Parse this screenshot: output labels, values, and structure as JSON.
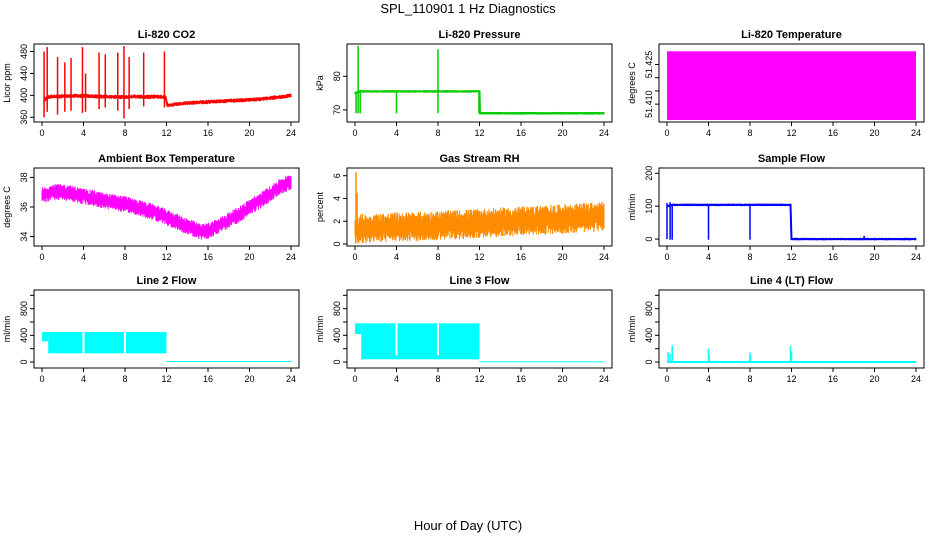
{
  "figure": {
    "title": "SPL_110901  1 Hz Diagnostics",
    "xlabel": "Hour of Day (UTC)"
  },
  "chart_data": [
    {
      "type": "line",
      "title": "Li-820 CO2",
      "ylabel": "Licor ppm",
      "color": "#ff0000",
      "xlim": [
        0,
        24
      ],
      "ylim": [
        355,
        490
      ],
      "xticks": [
        0,
        4,
        8,
        12,
        16,
        20,
        24
      ],
      "yticks": [
        360,
        400,
        440,
        480
      ],
      "base": [
        [
          0.2,
          390
        ],
        [
          0.5,
          397
        ],
        [
          1,
          398
        ],
        [
          2,
          398
        ],
        [
          3,
          399
        ],
        [
          4,
          399
        ],
        [
          5,
          398
        ],
        [
          6,
          398
        ],
        [
          7,
          397
        ],
        [
          8,
          397
        ],
        [
          9,
          398
        ],
        [
          10,
          397
        ],
        [
          11,
          398
        ],
        [
          11.9,
          397
        ],
        [
          12.1,
          381
        ],
        [
          13,
          384
        ],
        [
          14,
          386
        ],
        [
          15,
          387
        ],
        [
          16,
          388
        ],
        [
          17,
          389
        ],
        [
          18,
          390
        ],
        [
          19,
          391
        ],
        [
          20,
          392
        ],
        [
          21,
          393
        ],
        [
          22,
          395
        ],
        [
          23,
          397
        ],
        [
          24,
          400
        ]
      ],
      "band": 4,
      "spikes": [
        [
          0.2,
          360,
          480
        ],
        [
          0.5,
          370,
          488
        ],
        [
          1.5,
          365,
          470
        ],
        [
          2.2,
          370,
          460
        ],
        [
          2.8,
          372,
          468
        ],
        [
          3.9,
          368,
          488
        ],
        [
          4.2,
          370,
          440
        ],
        [
          5.5,
          375,
          478
        ],
        [
          6.1,
          378,
          475
        ],
        [
          7.3,
          372,
          478
        ],
        [
          7.9,
          358,
          490
        ],
        [
          8.4,
          375,
          470
        ],
        [
          9.8,
          380,
          478
        ],
        [
          11.8,
          378,
          480
        ]
      ]
    },
    {
      "type": "line",
      "title": "Li-820 Pressure",
      "ylabel": "kPa",
      "color": "#00cc00",
      "xlim": [
        0,
        24
      ],
      "ylim": [
        67,
        89
      ],
      "xticks": [
        0,
        4,
        8,
        12,
        16,
        20,
        24
      ],
      "yticks": [
        70,
        80
      ],
      "base": [
        [
          0,
          75
        ],
        [
          0.5,
          75.5
        ],
        [
          12,
          75.5
        ],
        [
          12.05,
          69
        ],
        [
          24,
          69
        ]
      ],
      "band": 0.4,
      "spikes": [
        [
          0.1,
          69,
          75
        ],
        [
          0.3,
          69,
          89
        ],
        [
          0.5,
          69,
          76
        ],
        [
          4,
          69,
          75.5
        ],
        [
          8,
          69,
          88
        ],
        [
          11.95,
          69,
          75.5
        ]
      ]
    },
    {
      "type": "area",
      "title": "Li-820 Temperature",
      "ylabel": "degrees C",
      "color": "#ff00ff",
      "xlim": [
        0,
        24
      ],
      "ylim": [
        51.404,
        51.432
      ],
      "xticks": [
        0,
        4,
        8,
        12,
        16,
        20,
        24
      ],
      "yticks": [
        51.41,
        51.415,
        51.42,
        51.425
      ],
      "ytick_labels": [
        "51.410",
        "",
        "",
        "51.425"
      ],
      "fill_range": [
        51.404,
        51.43
      ]
    },
    {
      "type": "line",
      "title": "Ambient Box Temperature",
      "ylabel": "degrees C",
      "color": "#ff00ff",
      "xlim": [
        0,
        24
      ],
      "ylim": [
        33.5,
        38.5
      ],
      "xticks": [
        0,
        4,
        8,
        12,
        16,
        20,
        24
      ],
      "yticks": [
        34,
        36,
        38
      ],
      "base": [
        [
          0,
          36.8
        ],
        [
          1,
          37
        ],
        [
          2,
          37
        ],
        [
          3,
          36.9
        ],
        [
          4,
          36.7
        ],
        [
          5,
          36.6
        ],
        [
          6,
          36.4
        ],
        [
          7,
          36.3
        ],
        [
          8,
          36.2
        ],
        [
          9,
          36
        ],
        [
          10,
          35.8
        ],
        [
          11,
          35.6
        ],
        [
          12,
          35.3
        ],
        [
          13,
          35
        ],
        [
          14,
          34.7
        ],
        [
          15,
          34.4
        ],
        [
          15.5,
          34.3
        ],
        [
          16,
          34.4
        ],
        [
          17,
          34.7
        ],
        [
          18,
          35.1
        ],
        [
          19,
          35.5
        ],
        [
          20,
          36
        ],
        [
          21,
          36.4
        ],
        [
          22,
          36.9
        ],
        [
          23,
          37.4
        ],
        [
          24,
          37.7
        ]
      ],
      "band": 0.55,
      "spikes": []
    },
    {
      "type": "line",
      "title": "Gas Stream RH",
      "ylabel": "percent",
      "color": "#ff8c00",
      "xlim": [
        0,
        24
      ],
      "ylim": [
        0,
        6.5
      ],
      "xticks": [
        0,
        4,
        8,
        12,
        16,
        20,
        24
      ],
      "yticks": [
        0,
        2,
        4,
        6
      ],
      "base": [
        [
          0,
          1.3
        ],
        [
          4,
          1.5
        ],
        [
          8,
          1.6
        ],
        [
          12,
          1.8
        ],
        [
          16,
          2
        ],
        [
          20,
          2.2
        ],
        [
          24,
          2.4
        ]
      ],
      "band": 1.3,
      "spikes": [
        [
          0.1,
          1,
          6.3
        ],
        [
          0.2,
          1,
          4.5
        ]
      ]
    },
    {
      "type": "line",
      "title": "Sample Flow",
      "ylabel": "ml/min",
      "color": "#0000ff",
      "xlim": [
        0,
        24
      ],
      "ylim": [
        -15,
        210
      ],
      "xticks": [
        0,
        4,
        8,
        12,
        16,
        20,
        24
      ],
      "yticks": [
        0,
        100,
        200
      ],
      "base": [
        [
          0,
          100
        ],
        [
          0.5,
          104
        ],
        [
          11.9,
          104
        ],
        [
          12,
          0
        ],
        [
          24,
          0
        ]
      ],
      "band": 4,
      "spikes": [
        [
          0,
          0,
          110
        ],
        [
          0.3,
          -2,
          112
        ],
        [
          0.5,
          -2,
          105
        ],
        [
          4,
          -2,
          105
        ],
        [
          8,
          -2,
          105
        ],
        [
          19,
          0,
          10
        ]
      ]
    },
    {
      "type": "area",
      "title": "Line 2 Flow",
      "ylabel": "ml/min",
      "color": "#00ffff",
      "xlim": [
        0,
        24
      ],
      "ylim": [
        -60,
        1050
      ],
      "xticks": [
        0,
        4,
        8,
        12,
        16,
        20,
        24
      ],
      "yticks": [
        0,
        200,
        400,
        600,
        800,
        1000
      ],
      "ytick_labels": [
        "0",
        "",
        "400",
        "",
        "800",
        ""
      ],
      "blocks": [
        [
          0,
          0.6,
          310,
          450
        ],
        [
          0.6,
          12,
          130,
          450
        ]
      ],
      "gaps": [
        4,
        8
      ],
      "tail": [
        12,
        24,
        0,
        15
      ]
    },
    {
      "type": "area",
      "title": "Line 3 Flow",
      "ylabel": "ml/min",
      "color": "#00ffff",
      "xlim": [
        0,
        24
      ],
      "ylim": [
        -60,
        1050
      ],
      "xticks": [
        0,
        4,
        8,
        12,
        16,
        20,
        24
      ],
      "yticks": [
        0,
        200,
        400,
        600,
        800,
        1000
      ],
      "ytick_labels": [
        "0",
        "",
        "400",
        "",
        "800",
        ""
      ],
      "blocks": [
        [
          0,
          0.6,
          420,
          580
        ],
        [
          0.6,
          12,
          40,
          580
        ]
      ],
      "gaps": [
        4,
        8
      ],
      "tail": [
        12,
        24,
        0,
        10
      ]
    },
    {
      "type": "line",
      "title": "Line 4 (LT) Flow",
      "ylabel": "ml/min",
      "color": "#00ffff",
      "xlim": [
        0,
        24
      ],
      "ylim": [
        -60,
        1050
      ],
      "xticks": [
        0,
        4,
        8,
        12,
        16,
        20,
        24
      ],
      "yticks": [
        0,
        200,
        400,
        600,
        800,
        1000
      ],
      "ytick_labels": [
        "0",
        "",
        "400",
        "",
        "800",
        ""
      ],
      "base": [
        [
          0,
          0
        ],
        [
          24,
          0
        ]
      ],
      "band": 5,
      "spikes": [
        [
          0.1,
          0,
          150
        ],
        [
          0.3,
          0,
          120
        ],
        [
          0.5,
          0,
          250
        ],
        [
          4,
          0,
          200
        ],
        [
          4.05,
          0,
          120
        ],
        [
          8,
          0,
          140
        ],
        [
          8.05,
          0,
          90
        ],
        [
          11.9,
          0,
          240
        ],
        [
          12,
          0,
          160
        ]
      ]
    }
  ]
}
